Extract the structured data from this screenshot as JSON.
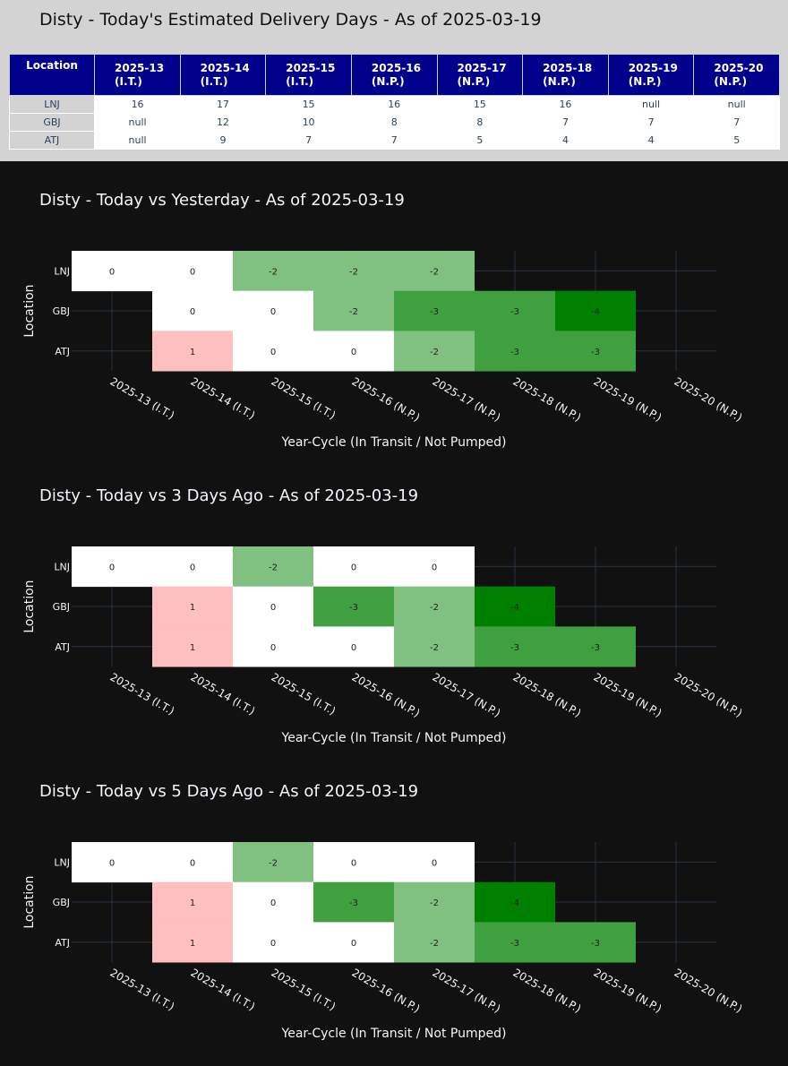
{
  "table": {
    "title": "Disty - Today's Estimated Delivery Days - As of 2025-03-19",
    "header_location": "Location",
    "columns": [
      [
        "2025-13",
        "(I.T.)"
      ],
      [
        "2025-14",
        "(I.T.)"
      ],
      [
        "2025-15",
        "(I.T.)"
      ],
      [
        "2025-16",
        "(N.P.)"
      ],
      [
        "2025-17",
        "(N.P.)"
      ],
      [
        "2025-18",
        "(N.P.)"
      ],
      [
        "2025-19",
        "(N.P.)"
      ],
      [
        "2025-20",
        "(N.P.)"
      ]
    ],
    "rows": [
      {
        "location": "LNJ",
        "values": [
          "16",
          "17",
          "15",
          "16",
          "15",
          "16",
          "null",
          "null"
        ]
      },
      {
        "location": "GBJ",
        "values": [
          "null",
          "12",
          "10",
          "8",
          "8",
          "7",
          "7",
          "7"
        ]
      },
      {
        "location": "ATJ",
        "values": [
          "null",
          "9",
          "7",
          "7",
          "5",
          "4",
          "4",
          "5"
        ]
      }
    ]
  },
  "colors": {
    "top_panel": "#d3d3d3",
    "table_header": "#00008b",
    "page_background": "#111111",
    "zero": "#ffffff",
    "plus1": "#ffbfbf",
    "minus2": "#80c080",
    "minus3": "#40a040",
    "minus4": "#008000"
  },
  "chart_data": [
    {
      "type": "heatmap",
      "title": "Disty - Today vs Yesterday - As of 2025-03-19",
      "xlabel": "Year-Cycle (In Transit / Not Pumped)",
      "ylabel": "Location",
      "x": [
        "2025-13 (I.T.)",
        "2025-14 (I.T.)",
        "2025-15 (I.T.)",
        "2025-16 (N.P.)",
        "2025-17 (N.P.)",
        "2025-18 (N.P.)",
        "2025-19 (N.P.)",
        "2025-20 (N.P.)"
      ],
      "y": [
        "LNJ",
        "GBJ",
        "ATJ"
      ],
      "z": [
        [
          0,
          0,
          -2,
          -2,
          -2,
          null,
          null,
          null
        ],
        [
          null,
          0,
          0,
          -2,
          -3,
          -3,
          -4,
          null
        ],
        [
          null,
          1,
          0,
          0,
          -2,
          -3,
          -3,
          null
        ]
      ],
      "grid": true
    },
    {
      "type": "heatmap",
      "title": "Disty - Today vs 3 Days Ago - As of 2025-03-19",
      "xlabel": "Year-Cycle (In Transit / Not Pumped)",
      "ylabel": "Location",
      "x": [
        "2025-13 (I.T.)",
        "2025-14 (I.T.)",
        "2025-15 (I.T.)",
        "2025-16 (N.P.)",
        "2025-17 (N.P.)",
        "2025-18 (N.P.)",
        "2025-19 (N.P.)",
        "2025-20 (N.P.)"
      ],
      "y": [
        "LNJ",
        "GBJ",
        "ATJ"
      ],
      "z": [
        [
          0,
          0,
          -2,
          0,
          0,
          null,
          null,
          null
        ],
        [
          null,
          1,
          0,
          -3,
          -2,
          -4,
          null,
          null
        ],
        [
          null,
          1,
          0,
          0,
          -2,
          -3,
          -3,
          null
        ]
      ],
      "grid": true
    },
    {
      "type": "heatmap",
      "title": "Disty - Today vs 5 Days Ago - As of 2025-03-19",
      "xlabel": "Year-Cycle (In Transit / Not Pumped)",
      "ylabel": "Location",
      "x": [
        "2025-13 (I.T.)",
        "2025-14 (I.T.)",
        "2025-15 (I.T.)",
        "2025-16 (N.P.)",
        "2025-17 (N.P.)",
        "2025-18 (N.P.)",
        "2025-19 (N.P.)",
        "2025-20 (N.P.)"
      ],
      "y": [
        "LNJ",
        "GBJ",
        "ATJ"
      ],
      "z": [
        [
          0,
          0,
          -2,
          0,
          0,
          null,
          null,
          null
        ],
        [
          null,
          1,
          0,
          -3,
          -2,
          -4,
          null,
          null
        ],
        [
          null,
          1,
          0,
          0,
          -2,
          -3,
          -3,
          null
        ]
      ],
      "grid": true
    }
  ]
}
